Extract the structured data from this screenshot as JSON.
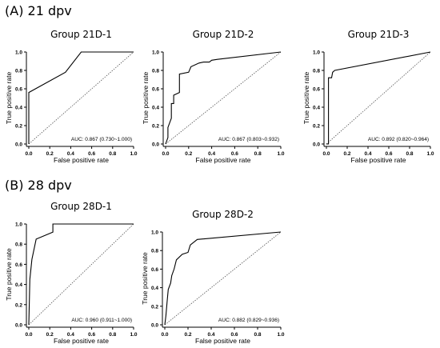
{
  "sections": [
    {
      "label": "(A) 21 dpv"
    },
    {
      "label": "(B) 28 dpv"
    }
  ],
  "chart_data": [
    {
      "type": "line",
      "title": "Group 21D-1",
      "xlabel": "False positive rate",
      "ylabel": "True positive rate",
      "xlim": [
        0,
        1
      ],
      "ylim": [
        0,
        1
      ],
      "xticks": [
        "0.0",
        "0.2",
        "0.4",
        "0.6",
        "0.8",
        "1.0"
      ],
      "yticks": [
        "0.0",
        "0.2",
        "0.4",
        "0.6",
        "0.8",
        "1.0"
      ],
      "annotation": "AUC: 0.867 (0.730~1.000)",
      "reference_line": "diagonal-dotted",
      "x": [
        0,
        0,
        0.35,
        0.5,
        1.0
      ],
      "y": [
        0,
        0.56,
        0.78,
        1.0,
        1.0
      ]
    },
    {
      "type": "line",
      "title": "Group 21D-2",
      "xlabel": "False positive rate",
      "ylabel": "True positive rate",
      "xlim": [
        0,
        1
      ],
      "ylim": [
        0,
        1
      ],
      "xticks": [
        "0.0",
        "0.2",
        "0.4",
        "0.6",
        "0.8",
        "1.0"
      ],
      "yticks": [
        "0.0",
        "0.2",
        "0.4",
        "0.6",
        "0.8",
        "1.0"
      ],
      "annotation": "AUC: 0.867 (0.803~0.932)",
      "reference_line": "diagonal-dotted",
      "x": [
        0,
        0.02,
        0.02,
        0.05,
        0.05,
        0.07,
        0.07,
        0.12,
        0.12,
        0.2,
        0.22,
        0.29,
        0.33,
        0.38,
        0.4,
        0.45,
        1.0
      ],
      "y": [
        0,
        0.07,
        0.18,
        0.28,
        0.44,
        0.44,
        0.53,
        0.56,
        0.76,
        0.78,
        0.84,
        0.88,
        0.89,
        0.89,
        0.91,
        0.92,
        1.0
      ]
    },
    {
      "type": "line",
      "title": "Group 21D-3",
      "xlabel": "False positive rate",
      "ylabel": "True positive rate",
      "xlim": [
        0,
        1
      ],
      "ylim": [
        0,
        1
      ],
      "xticks": [
        "0.0",
        "0.2",
        "0.4",
        "0.6",
        "0.8",
        "1.0"
      ],
      "yticks": [
        "0.0",
        "0.2",
        "0.4",
        "0.6",
        "0.8",
        "1.0"
      ],
      "annotation": "AUC: 0.892 (0.820~0.964)",
      "reference_line": "diagonal-dotted",
      "x": [
        0,
        0.02,
        0.02,
        0.05,
        0.06,
        0.08,
        1.0
      ],
      "y": [
        0,
        0,
        0.72,
        0.72,
        0.78,
        0.8,
        1.0
      ]
    },
    {
      "type": "line",
      "title": "Group 28D-1",
      "xlabel": "False positive rate",
      "ylabel": "True positive rate",
      "xlim": [
        0,
        1
      ],
      "ylim": [
        0,
        1
      ],
      "xticks": [
        "0.0",
        "0.2",
        "0.4",
        "0.6",
        "0.8",
        "1.0"
      ],
      "yticks": [
        "0.0",
        "0.2",
        "0.4",
        "0.6",
        "0.8",
        "1.0"
      ],
      "annotation": "AUC: 0.960 (0.911~1.000)",
      "reference_line": "diagonal-dotted",
      "x": [
        0,
        0.01,
        0.03,
        0.07,
        0.23,
        0.23,
        1.0
      ],
      "y": [
        0,
        0.45,
        0.65,
        0.85,
        0.92,
        1.0,
        1.0
      ]
    },
    {
      "type": "line",
      "title": "Group 28D-2",
      "xlabel": "False positive rate",
      "ylabel": "True positive rate",
      "xlim": [
        0,
        1
      ],
      "ylim": [
        0,
        1
      ],
      "xticks": [
        "0.0",
        "0.2",
        "0.4",
        "0.6",
        "0.8",
        "1.0"
      ],
      "yticks": [
        "0.0",
        "0.2",
        "0.4",
        "0.6",
        "0.8",
        "1.0"
      ],
      "annotation": "AUC: 0.882 (0.829~0.936)",
      "reference_line": "diagonal-dotted",
      "x": [
        0,
        0.01,
        0.02,
        0.03,
        0.05,
        0.06,
        0.08,
        0.1,
        0.15,
        0.2,
        0.22,
        0.28,
        1.0
      ],
      "y": [
        0,
        0.1,
        0.25,
        0.38,
        0.45,
        0.53,
        0.6,
        0.7,
        0.76,
        0.78,
        0.86,
        0.92,
        1.0
      ]
    }
  ]
}
